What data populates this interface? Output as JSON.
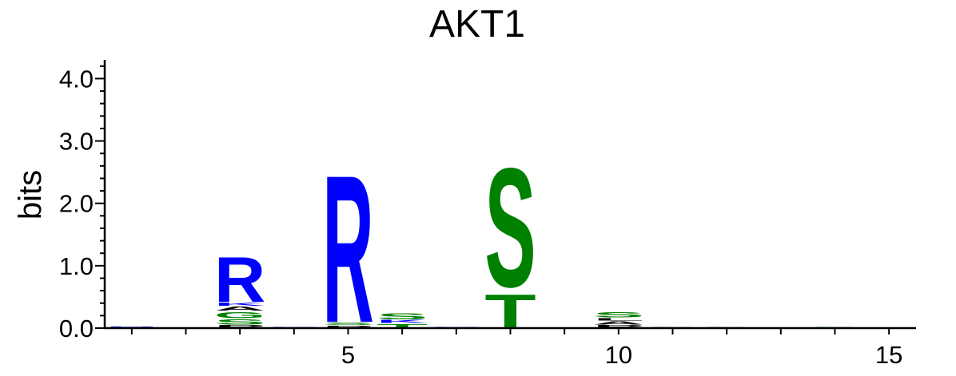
{
  "chart_data": {
    "type": "sequence-logo",
    "title": "AKT1",
    "ylabel": "bits",
    "xlabel": "",
    "ylim": [
      0,
      4.3
    ],
    "xlim": [
      0.5,
      15.5
    ],
    "y_ticks": [
      {
        "value": 0.0,
        "label": "0.0"
      },
      {
        "value": 1.0,
        "label": "1.0"
      },
      {
        "value": 2.0,
        "label": "2.0"
      },
      {
        "value": 3.0,
        "label": "3.0"
      },
      {
        "value": 4.0,
        "label": "4.0"
      }
    ],
    "x_ticks": [
      {
        "value": 5,
        "label": "5"
      },
      {
        "value": 10,
        "label": "10"
      },
      {
        "value": 15,
        "label": "15"
      }
    ],
    "colors": {
      "basic": "#0000ff",
      "polar": "#008000",
      "hydrophobic": "#000000",
      "acidic": "#cc0000"
    },
    "positions": [
      {
        "pos": 1,
        "letters": [
          {
            "ch": "R",
            "bits": 0.03,
            "color": "#0000ff"
          }
        ]
      },
      {
        "pos": 2,
        "letters": []
      },
      {
        "pos": 3,
        "letters": [
          {
            "ch": "P",
            "bits": 0.06,
            "color": "#000000"
          },
          {
            "ch": "S",
            "bits": 0.1,
            "color": "#008000"
          },
          {
            "ch": "G",
            "bits": 0.12,
            "color": "#008000"
          },
          {
            "ch": "A",
            "bits": 0.08,
            "color": "#000000"
          },
          {
            "ch": "K",
            "bits": 0.06,
            "color": "#0000ff"
          },
          {
            "ch": "R",
            "bits": 0.9,
            "color": "#0000ff"
          }
        ]
      },
      {
        "pos": 4,
        "letters": [
          {
            "ch": "R",
            "bits": 0.02,
            "color": "#0000ff"
          }
        ]
      },
      {
        "pos": 5,
        "letters": [
          {
            "ch": "P",
            "bits": 0.05,
            "color": "#000000"
          },
          {
            "ch": "S",
            "bits": 0.05,
            "color": "#008000"
          },
          {
            "ch": "R",
            "bits": 2.95,
            "color": "#0000ff"
          }
        ]
      },
      {
        "pos": 6,
        "letters": [
          {
            "ch": "T",
            "bits": 0.08,
            "color": "#008000"
          },
          {
            "ch": "K",
            "bits": 0.06,
            "color": "#0000ff"
          },
          {
            "ch": "S",
            "bits": 0.12,
            "color": "#008000"
          }
        ]
      },
      {
        "pos": 7,
        "letters": [
          {
            "ch": "R",
            "bits": 0.02,
            "color": "#0000ff"
          }
        ]
      },
      {
        "pos": 8,
        "letters": [
          {
            "ch": "T",
            "bits": 0.67,
            "color": "#008000"
          },
          {
            "ch": "S",
            "bits": 2.38,
            "color": "#008000"
          }
        ]
      },
      {
        "pos": 9,
        "letters": []
      },
      {
        "pos": 10,
        "letters": [
          {
            "ch": "P",
            "bits": 0.06,
            "color": "#000000"
          },
          {
            "ch": "A",
            "bits": 0.06,
            "color": "#000000"
          },
          {
            "ch": "L",
            "bits": 0.05,
            "color": "#000000"
          },
          {
            "ch": "S",
            "bits": 0.1,
            "color": "#008000"
          }
        ]
      },
      {
        "pos": 11,
        "letters": [
          {
            "ch": "S",
            "bits": 0.02,
            "color": "#008000"
          }
        ]
      },
      {
        "pos": 12,
        "letters": [
          {
            "ch": "S",
            "bits": 0.02,
            "color": "#008000"
          }
        ]
      },
      {
        "pos": 13,
        "letters": []
      },
      {
        "pos": 14,
        "letters": [
          {
            "ch": "S",
            "bits": 0.02,
            "color": "#008000"
          }
        ]
      },
      {
        "pos": 15,
        "letters": []
      }
    ]
  }
}
